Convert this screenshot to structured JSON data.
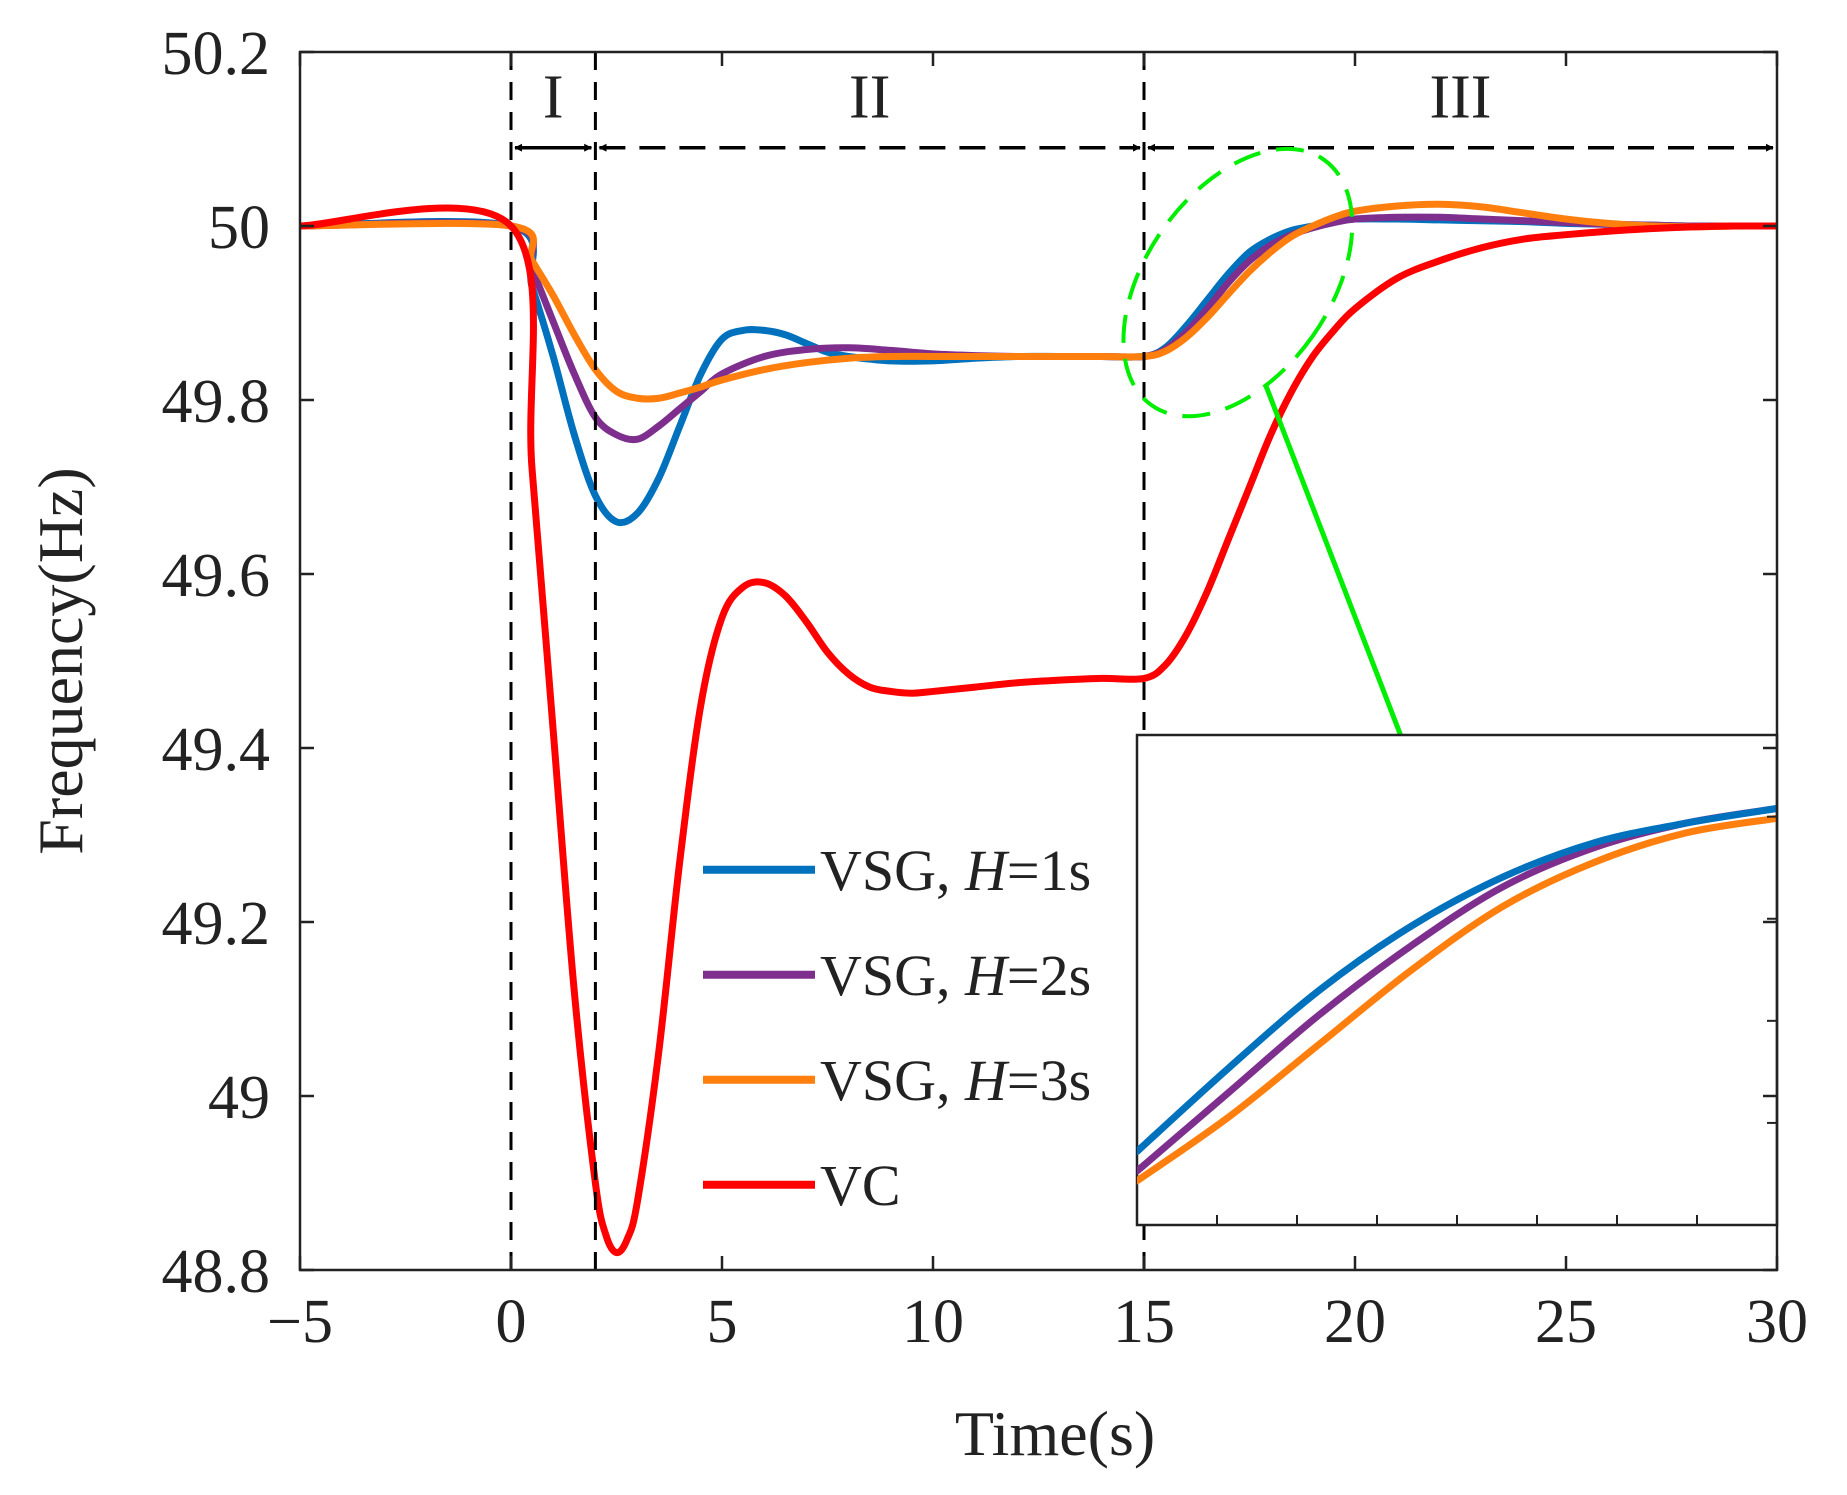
{
  "chart_data": {
    "type": "line",
    "title": "",
    "xlabel": "Time(s)",
    "ylabel": "Frequency(Hz)",
    "xlim": [
      -5,
      30
    ],
    "ylim": [
      48.8,
      50.2
    ],
    "xticks": [
      {
        "value": -5,
        "label": "−5"
      },
      {
        "value": 0,
        "label": "0"
      },
      {
        "value": 5,
        "label": "5"
      },
      {
        "value": 10,
        "label": "10"
      },
      {
        "value": 15,
        "label": "15"
      },
      {
        "value": 20,
        "label": "20"
      },
      {
        "value": 25,
        "label": "25"
      },
      {
        "value": 30,
        "label": "30"
      }
    ],
    "yticks": [
      {
        "value": 48.8,
        "label": "48.8"
      },
      {
        "value": 49,
        "label": "49"
      },
      {
        "value": 49.2,
        "label": "49.2"
      },
      {
        "value": 49.4,
        "label": "49.4"
      },
      {
        "value": 49.6,
        "label": "49.6"
      },
      {
        "value": 49.8,
        "label": "49.8"
      },
      {
        "value": 50,
        "label": "50"
      },
      {
        "value": 50.2,
        "label": "50.2"
      }
    ],
    "grid": false,
    "legend_position": "lower-center",
    "regions": [
      {
        "label": "I",
        "x_start": 0,
        "x_end": 2
      },
      {
        "label": "II",
        "x_start": 2,
        "x_end": 15
      },
      {
        "label": "III",
        "x_start": 15,
        "x_end": 30
      }
    ],
    "region_boundaries": [
      0,
      2,
      15
    ],
    "series": [
      {
        "name": "VSG, H=1s",
        "legend": {
          "prefix": "VSG, ",
          "var": "H",
          "suffix": "=1s"
        },
        "color": "#0072BD",
        "x": [
          -5,
          0,
          0.5,
          1,
          1.5,
          2,
          2.5,
          3,
          3.5,
          4,
          4.5,
          5,
          5.5,
          6,
          6.5,
          7,
          7.5,
          8,
          9,
          10,
          11,
          12,
          13,
          14,
          15,
          15.5,
          16,
          16.5,
          17,
          17.5,
          18,
          18.5,
          19,
          19.5,
          20,
          21,
          22,
          23,
          24,
          25,
          26,
          27,
          28,
          29,
          30
        ],
        "y": [
          50,
          50,
          49.93,
          49.85,
          49.76,
          49.69,
          49.66,
          49.67,
          49.71,
          49.77,
          49.83,
          49.87,
          49.88,
          49.88,
          49.875,
          49.865,
          49.855,
          49.85,
          49.845,
          49.845,
          49.848,
          49.85,
          49.85,
          49.85,
          49.85,
          49.86,
          49.885,
          49.915,
          49.945,
          49.97,
          49.985,
          49.995,
          50.0,
          50.005,
          50.008,
          50.008,
          50.007,
          50.006,
          50.005,
          50.003,
          50.002,
          50.001,
          50.0,
          50.0,
          50.0
        ]
      },
      {
        "name": "VSG, H=2s",
        "legend": {
          "prefix": "VSG, ",
          "var": "H",
          "suffix": "=2s"
        },
        "color": "#7E2F8E",
        "x": [
          -5,
          0,
          0.5,
          1,
          1.5,
          2,
          2.5,
          3,
          3.5,
          4,
          4.5,
          5,
          6,
          7,
          8,
          9,
          10,
          11,
          12,
          13,
          14,
          15,
          15.5,
          16,
          16.5,
          17,
          17.5,
          18,
          18.5,
          19,
          19.5,
          20,
          21,
          22,
          23,
          24,
          25,
          26,
          27,
          28,
          29,
          30
        ],
        "y": [
          50,
          50,
          49.95,
          49.89,
          49.83,
          49.78,
          49.76,
          49.755,
          49.77,
          49.79,
          49.81,
          49.83,
          49.85,
          49.858,
          49.86,
          49.857,
          49.853,
          49.851,
          49.85,
          49.85,
          49.85,
          49.85,
          49.858,
          49.878,
          49.905,
          49.935,
          49.96,
          49.978,
          49.99,
          49.998,
          50.004,
          50.008,
          50.01,
          50.01,
          50.008,
          50.006,
          50.004,
          50.002,
          50.001,
          50.0,
          50.0,
          50.0
        ]
      },
      {
        "name": "VSG, H=3s",
        "legend": {
          "prefix": "VSG, ",
          "var": "H",
          "suffix": "=3s"
        },
        "color": "#FF7F0E",
        "x": [
          -5,
          0,
          0.5,
          1,
          1.5,
          2,
          2.5,
          3,
          3.5,
          4,
          4.5,
          5,
          6,
          7,
          8,
          9,
          10,
          11,
          12,
          13,
          14,
          15,
          15.5,
          16,
          16.5,
          17,
          17.5,
          18,
          18.5,
          19,
          19.5,
          20,
          21,
          22,
          23,
          24,
          25,
          26,
          27,
          28,
          29,
          30
        ],
        "y": [
          50,
          50,
          49.96,
          49.92,
          49.875,
          49.835,
          49.81,
          49.802,
          49.802,
          49.808,
          49.815,
          49.823,
          49.835,
          49.843,
          49.848,
          49.85,
          49.85,
          49.85,
          49.85,
          49.85,
          49.85,
          49.85,
          49.856,
          49.872,
          49.895,
          49.922,
          49.948,
          49.97,
          49.988,
          50.0,
          50.01,
          50.017,
          50.023,
          50.025,
          50.022,
          50.015,
          50.008,
          50.003,
          50.0,
          49.999,
          50.0,
          50.0
        ]
      },
      {
        "name": "VC",
        "legend": {
          "prefix": "VC",
          "var": "",
          "suffix": ""
        },
        "color": "#FF0000",
        "x": [
          -5,
          0,
          0.5,
          1,
          1.5,
          2,
          2.25,
          2.5,
          2.75,
          3,
          3.5,
          4,
          4.5,
          5,
          5.5,
          6,
          6.5,
          7,
          7.5,
          8,
          8.5,
          9,
          9.5,
          10,
          11,
          12,
          13,
          14,
          15,
          15.5,
          16,
          16.5,
          17,
          17.5,
          18,
          18.5,
          19,
          19.5,
          20,
          21,
          22,
          23,
          24,
          25,
          26,
          27,
          28,
          29,
          30
        ],
        "y": [
          50,
          50,
          49.72,
          49.42,
          49.12,
          48.9,
          48.84,
          48.82,
          48.835,
          48.88,
          49.05,
          49.27,
          49.45,
          49.55,
          49.585,
          49.59,
          49.575,
          49.545,
          49.51,
          49.485,
          49.47,
          49.465,
          49.463,
          49.465,
          49.47,
          49.475,
          49.478,
          49.48,
          49.48,
          49.495,
          49.53,
          49.58,
          49.64,
          49.7,
          49.76,
          49.81,
          49.85,
          49.88,
          49.905,
          49.94,
          49.96,
          49.975,
          49.985,
          49.99,
          49.994,
          49.997,
          49.999,
          50.0,
          50.0
        ]
      }
    ],
    "inset": {
      "source_xlim": [
        15,
        20
      ],
      "source_ylim": [
        49.85,
        50.0
      ],
      "series": [
        {
          "name": "VSG, H=1s",
          "color": "#0072BD",
          "y": [
            0.15,
            0.32,
            0.48,
            0.61,
            0.71,
            0.78,
            0.82,
            0.85
          ]
        },
        {
          "name": "VSG, H=2s",
          "color": "#7E2F8E",
          "y": [
            0.11,
            0.27,
            0.43,
            0.57,
            0.69,
            0.77,
            0.82,
            0.85
          ]
        },
        {
          "name": "VSG, H=3s",
          "color": "#FF7F0E",
          "y": [
            0.09,
            0.22,
            0.37,
            0.52,
            0.65,
            0.74,
            0.8,
            0.83
          ]
        }
      ]
    },
    "zoom_ellipse_color": "#00EE00",
    "zoom_arrow_color": "#00EE00",
    "boundary_line_color": "#000000"
  }
}
